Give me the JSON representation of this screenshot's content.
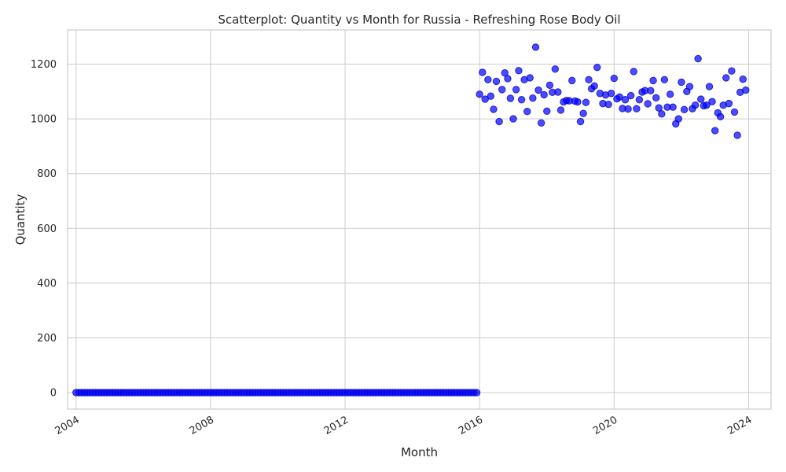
{
  "chart_data": {
    "type": "scatter",
    "title": "Scatterplot: Quantity vs Month for Russia - Refreshing Rose Body Oil",
    "xlabel": "Month",
    "ylabel": "Quantity",
    "x_is_date": true,
    "xlim": [
      "2003-10-01",
      "2024-09-01"
    ],
    "ylim": [
      -60,
      1325
    ],
    "xticks": [
      "2004-01-01",
      "2008-01-01",
      "2012-01-01",
      "2016-01-01",
      "2020-01-01",
      "2024-01-01"
    ],
    "xtick_labels": [
      "2004",
      "2008",
      "2012",
      "2016",
      "2020",
      "2024"
    ],
    "yticks": [
      0,
      200,
      400,
      600,
      800,
      1000,
      1200
    ],
    "ytick_labels": [
      "0",
      "200",
      "400",
      "600",
      "800",
      "1000",
      "1200"
    ],
    "grid": true,
    "color": "#0000ff",
    "zero_series": {
      "start": "2004-01",
      "end": "2015-12",
      "value": 0
    },
    "x": [
      "2016-01",
      "2016-02",
      "2016-03",
      "2016-04",
      "2016-05",
      "2016-06",
      "2016-07",
      "2016-08",
      "2016-09",
      "2016-10",
      "2016-11",
      "2016-12",
      "2017-01",
      "2017-02",
      "2017-03",
      "2017-04",
      "2017-05",
      "2017-06",
      "2017-07",
      "2017-08",
      "2017-09",
      "2017-10",
      "2017-11",
      "2017-12",
      "2018-01",
      "2018-02",
      "2018-03",
      "2018-04",
      "2018-05",
      "2018-06",
      "2018-07",
      "2018-08",
      "2018-09",
      "2018-10",
      "2018-11",
      "2018-12",
      "2019-01",
      "2019-02",
      "2019-03",
      "2019-04",
      "2019-05",
      "2019-06",
      "2019-07",
      "2019-08",
      "2019-09",
      "2019-10",
      "2019-11",
      "2019-12",
      "2020-01",
      "2020-02",
      "2020-03",
      "2020-04",
      "2020-05",
      "2020-06",
      "2020-07",
      "2020-08",
      "2020-09",
      "2020-10",
      "2020-11",
      "2020-12",
      "2021-01",
      "2021-02",
      "2021-03",
      "2021-04",
      "2021-05",
      "2021-06",
      "2021-07",
      "2021-08",
      "2021-09",
      "2021-10",
      "2021-11",
      "2021-12",
      "2022-01",
      "2022-02",
      "2022-03",
      "2022-04",
      "2022-05",
      "2022-06",
      "2022-07",
      "2022-08",
      "2022-09",
      "2022-10",
      "2022-11",
      "2022-12",
      "2023-01",
      "2023-02",
      "2023-03",
      "2023-04",
      "2023-05",
      "2023-06",
      "2023-07",
      "2023-08",
      "2023-09",
      "2023-10",
      "2023-11",
      "2023-12"
    ],
    "y": [
      1090,
      1170,
      1072,
      1143,
      1083,
      1035,
      1137,
      990,
      1107,
      1168,
      1147,
      1075,
      1000,
      1107,
      1176,
      1070,
      1143,
      1027,
      1150,
      1076,
      1262,
      1105,
      985,
      1088,
      1028,
      1123,
      1097,
      1182,
      1098,
      1032,
      1062,
      1067,
      1066,
      1140,
      1065,
      1062,
      990,
      1020,
      1060,
      1143,
      1110,
      1120,
      1188,
      1093,
      1056,
      1087,
      1053,
      1093,
      1148,
      1073,
      1080,
      1038,
      1070,
      1036,
      1085,
      1173,
      1037,
      1070,
      1098,
      1103,
      1055,
      1103,
      1140,
      1077,
      1040,
      1018,
      1143,
      1043,
      1090,
      1043,
      982,
      1000,
      1134,
      1034,
      1100,
      1118,
      1037,
      1050,
      1220,
      1072,
      1048,
      1050,
      1118,
      1063,
      957,
      1022,
      1008,
      1050,
      1150,
      1056,
      1175,
      1025,
      940,
      1097,
      1145,
      1105
    ]
  }
}
